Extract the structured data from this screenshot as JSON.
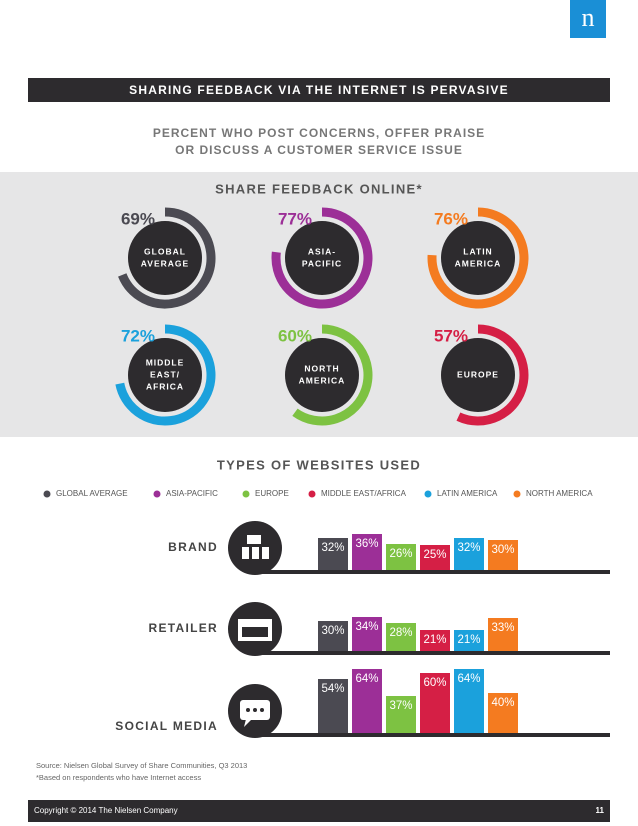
{
  "logo": "n",
  "header": "SHARING FEEDBACK VIA THE INTERNET IS PERVASIVE",
  "subtitle": [
    "PERCENT WHO POST CONCERNS, OFFER PRAISE",
    "OR DISCUSS A CUSTOMER SERVICE ISSUE"
  ],
  "chart_data": [
    {
      "type": "donut",
      "title": "SHARE FEEDBACK ONLINE*",
      "categories": [
        [
          "GLOBAL",
          "AVERAGE"
        ],
        [
          "ASIA-",
          "PACIFIC"
        ],
        [
          "LATIN",
          "AMERICA"
        ],
        [
          "MIDDLE",
          "EAST/",
          "AFRICA"
        ],
        [
          "NORTH",
          "AMERICA"
        ],
        [
          "EUROPE"
        ]
      ],
      "values": [
        69,
        77,
        76,
        72,
        60,
        57
      ],
      "value_labels": [
        "69%",
        "77%",
        "76%",
        "72%",
        "60%",
        "57%"
      ],
      "colors": [
        "#4b4a52",
        "#9c2f97",
        "#f47b20",
        "#1ba1dc",
        "#7dc242",
        "#d51f45"
      ]
    },
    {
      "type": "bar",
      "title": "TYPES OF WEBSITES USED",
      "categories": [
        "BRAND",
        "RETAILER",
        "SOCIAL MEDIA"
      ],
      "series": [
        {
          "name": "GLOBAL AVERAGE",
          "color": "#4b4a52",
          "values": [
            32,
            30,
            54
          ],
          "value_labels": [
            "32%",
            "30%",
            "54%"
          ]
        },
        {
          "name": "ASIA-PACIFIC",
          "color": "#9c2f97",
          "values": [
            36,
            34,
            64
          ],
          "value_labels": [
            "36%",
            "34%",
            "64%"
          ]
        },
        {
          "name": "EUROPE",
          "color": "#7dc242",
          "values": [
            26,
            28,
            37
          ],
          "value_labels": [
            "26%",
            "28%",
            "37%"
          ]
        },
        {
          "name": "MIDDLE EAST/AFRICA",
          "color": "#d51f45",
          "values": [
            25,
            21,
            60
          ],
          "value_labels": [
            "25%",
            "21%",
            "60%"
          ]
        },
        {
          "name": "LATIN AMERICA",
          "color": "#1ba1dc",
          "values": [
            32,
            21,
            64
          ],
          "value_labels": [
            "32%",
            "21%",
            "64%"
          ]
        },
        {
          "name": "NORTH AMERICA",
          "color": "#f47b20",
          "values": [
            30,
            33,
            40
          ],
          "value_labels": [
            "30%",
            "33%",
            "40%"
          ]
        }
      ]
    }
  ],
  "source": [
    "Source: Nielsen Global Survey of Share Communities, Q3 2013",
    "*Based on respondents who have Internet access"
  ],
  "footer": {
    "copyright": "Copyright © 2014 The Nielsen Company",
    "page": "11"
  }
}
